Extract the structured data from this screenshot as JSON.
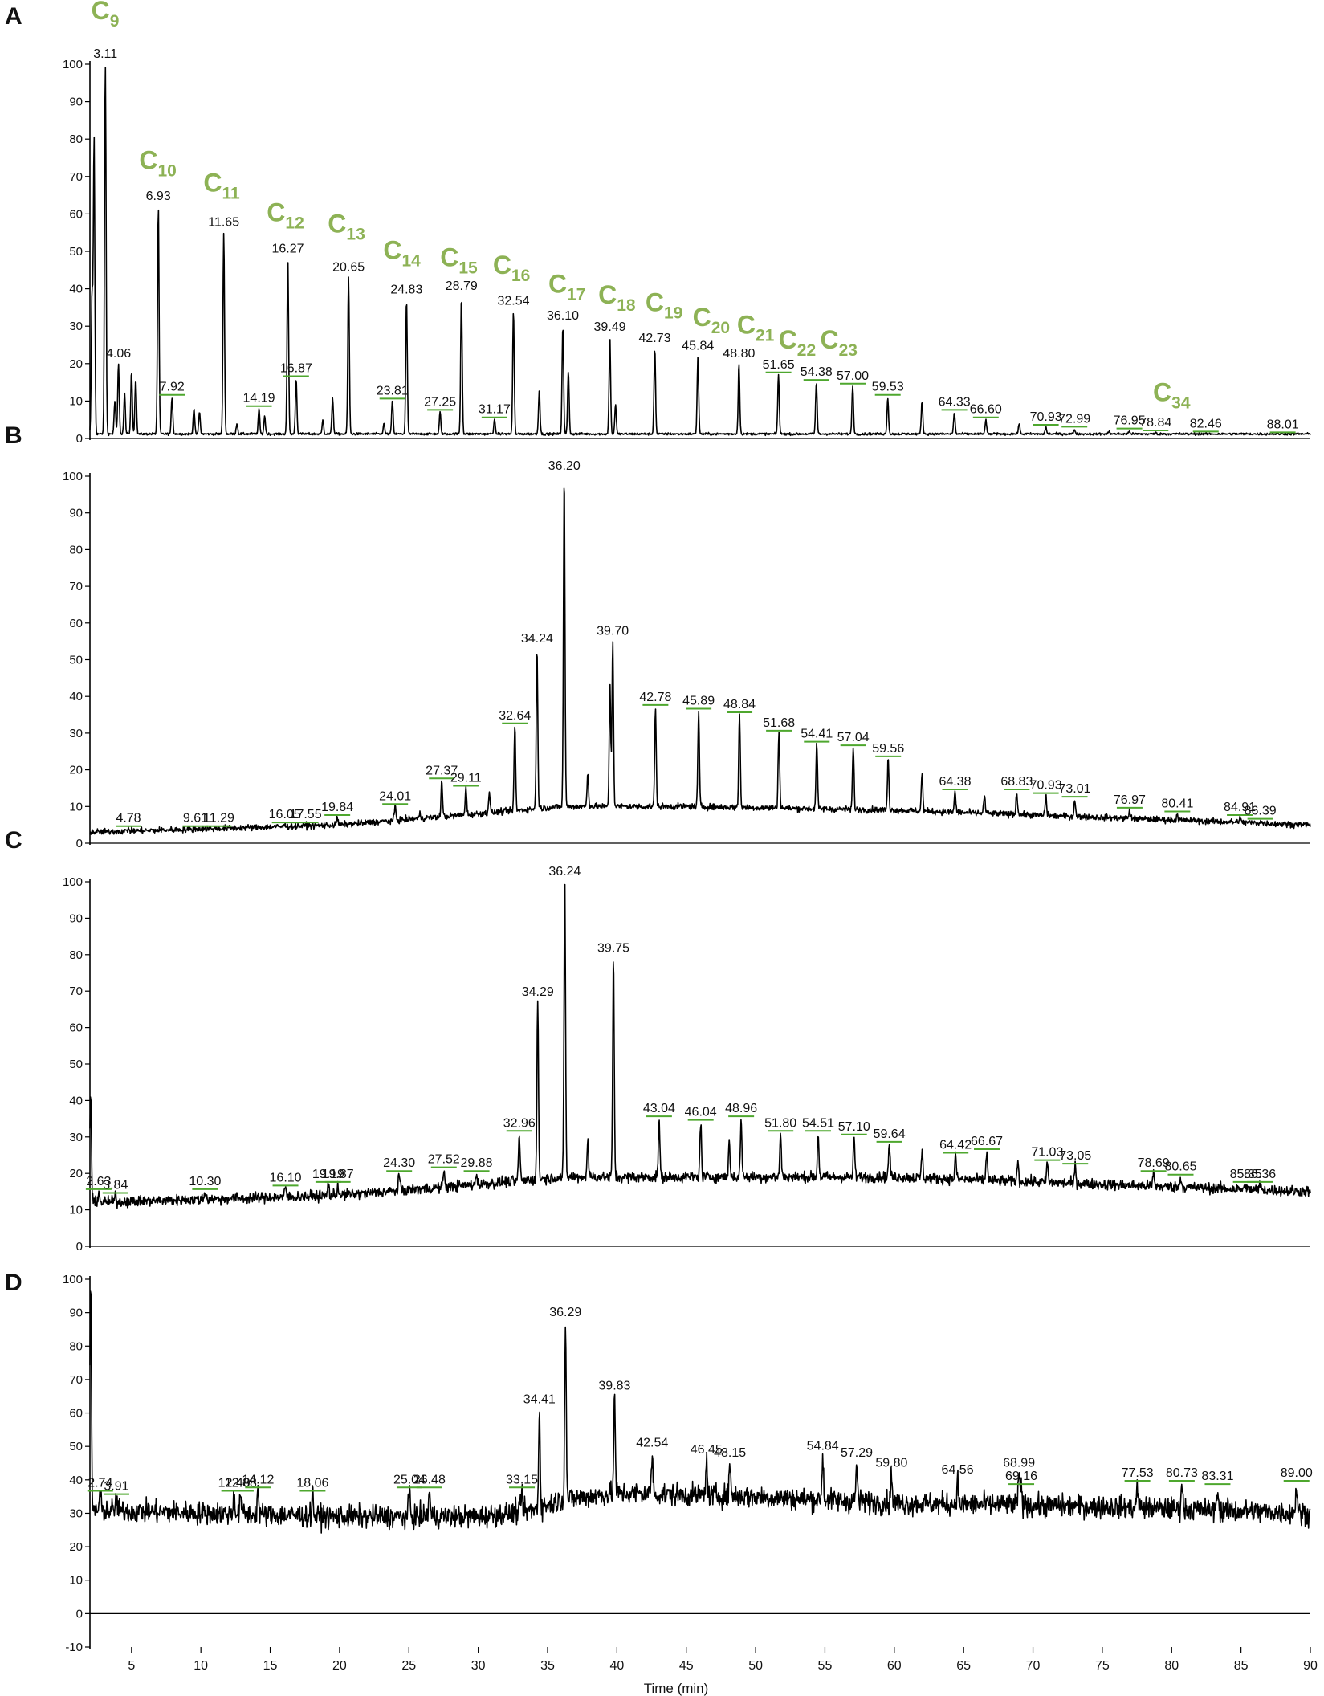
{
  "chart_data": {
    "type": "line",
    "xlabel": "Time (min)",
    "xlim": [
      2,
      90
    ],
    "x_ticks": [
      "5",
      "10",
      "15",
      "20",
      "25",
      "30",
      "35",
      "40",
      "45",
      "50",
      "55",
      "60",
      "65",
      "70",
      "75",
      "80",
      "85",
      "90"
    ],
    "colors": {
      "trace": "#000000",
      "carbon_label": "#8db255",
      "marker": "#4ea72e"
    },
    "panels": [
      {
        "label": "A",
        "ylim": [
          0,
          100
        ],
        "y_ticks": [
          "0",
          "10",
          "20",
          "30",
          "40",
          "50",
          "60",
          "70",
          "80",
          "90",
          "100"
        ],
        "baseline": 1.2,
        "noise": 0.3,
        "peaks": [
          {
            "x": 2.3,
            "y": 80
          },
          {
            "x": 2.15,
            "y": 38
          },
          {
            "x": 3.11,
            "y": 100,
            "label": "3.11"
          },
          {
            "x": 3.8,
            "y": 10
          },
          {
            "x": 4.06,
            "y": 20,
            "label": "4.06"
          },
          {
            "x": 4.5,
            "y": 12
          },
          {
            "x": 5.0,
            "y": 18
          },
          {
            "x": 5.3,
            "y": 16
          },
          {
            "x": 6.93,
            "y": 62,
            "label": "6.93"
          },
          {
            "x": 7.92,
            "y": 11,
            "label": "7.92"
          },
          {
            "x": 9.5,
            "y": 8
          },
          {
            "x": 9.9,
            "y": 7
          },
          {
            "x": 11.65,
            "y": 55,
            "label": "11.65"
          },
          {
            "x": 12.6,
            "y": 4
          },
          {
            "x": 14.19,
            "y": 8,
            "label": "14.19"
          },
          {
            "x": 14.6,
            "y": 6
          },
          {
            "x": 16.27,
            "y": 48,
            "label": "16.27"
          },
          {
            "x": 16.87,
            "y": 16,
            "label": "16.87"
          },
          {
            "x": 18.8,
            "y": 5
          },
          {
            "x": 19.5,
            "y": 11
          },
          {
            "x": 20.65,
            "y": 43,
            "label": "20.65"
          },
          {
            "x": 23.2,
            "y": 4
          },
          {
            "x": 23.81,
            "y": 10,
            "label": "23.81"
          },
          {
            "x": 24.83,
            "y": 37,
            "label": "24.83"
          },
          {
            "x": 27.25,
            "y": 7,
            "label": "27.25"
          },
          {
            "x": 28.79,
            "y": 38,
            "label": "28.79"
          },
          {
            "x": 31.17,
            "y": 5,
            "label": "31.17"
          },
          {
            "x": 32.54,
            "y": 34,
            "label": "32.54"
          },
          {
            "x": 34.4,
            "y": 13
          },
          {
            "x": 36.1,
            "y": 30,
            "label": "36.10"
          },
          {
            "x": 36.5,
            "y": 18
          },
          {
            "x": 39.49,
            "y": 27,
            "label": "39.49"
          },
          {
            "x": 39.9,
            "y": 9
          },
          {
            "x": 42.73,
            "y": 24,
            "label": "42.73"
          },
          {
            "x": 45.84,
            "y": 22,
            "label": "45.84"
          },
          {
            "x": 48.8,
            "y": 20,
            "label": "48.80"
          },
          {
            "x": 51.65,
            "y": 17,
            "label": "51.65"
          },
          {
            "x": 54.38,
            "y": 15,
            "label": "54.38"
          },
          {
            "x": 57.0,
            "y": 14,
            "label": "57.00"
          },
          {
            "x": 59.53,
            "y": 11,
            "label": "59.53"
          },
          {
            "x": 62.0,
            "y": 10
          },
          {
            "x": 64.33,
            "y": 7,
            "label": "64.33"
          },
          {
            "x": 66.6,
            "y": 5,
            "label": "66.60"
          },
          {
            "x": 69.0,
            "y": 4
          },
          {
            "x": 70.93,
            "y": 3,
            "label": "70.93"
          },
          {
            "x": 72.99,
            "y": 2.5,
            "label": "72.99"
          },
          {
            "x": 75.5,
            "y": 2
          },
          {
            "x": 76.95,
            "y": 2,
            "label": "76.95"
          },
          {
            "x": 78.84,
            "y": 1.5,
            "label": "78.84"
          },
          {
            "x": 82.46,
            "y": 1.2,
            "label": "82.46"
          },
          {
            "x": 88.01,
            "y": 1,
            "label": "88.01"
          }
        ],
        "carbon_labels": [
          {
            "base": "C",
            "sub": "9",
            "x": 3.1,
            "y": 112
          },
          {
            "base": "C",
            "sub": "10",
            "x": 6.9,
            "y": 72
          },
          {
            "base": "C",
            "sub": "11",
            "x": 11.5,
            "y": 66
          },
          {
            "base": "C",
            "sub": "12",
            "x": 16.1,
            "y": 58
          },
          {
            "base": "C",
            "sub": "13",
            "x": 20.5,
            "y": 55
          },
          {
            "base": "C",
            "sub": "14",
            "x": 24.5,
            "y": 48
          },
          {
            "base": "C",
            "sub": "15",
            "x": 28.6,
            "y": 46
          },
          {
            "base": "C",
            "sub": "16",
            "x": 32.4,
            "y": 44
          },
          {
            "base": "C",
            "sub": "17",
            "x": 36.4,
            "y": 39
          },
          {
            "base": "C",
            "sub": "18",
            "x": 40.0,
            "y": 36
          },
          {
            "base": "C",
            "sub": "19",
            "x": 43.4,
            "y": 34
          },
          {
            "base": "C",
            "sub": "20",
            "x": 46.8,
            "y": 30
          },
          {
            "base": "C",
            "sub": "21",
            "x": 50.0,
            "y": 28
          },
          {
            "base": "C",
            "sub": "22",
            "x": 53.0,
            "y": 24
          },
          {
            "base": "C",
            "sub": "23",
            "x": 56.0,
            "y": 24
          },
          {
            "base": "C",
            "sub": "34",
            "x": 80.0,
            "y": 10
          }
        ]
      },
      {
        "label": "B",
        "ylim": [
          0,
          100
        ],
        "y_ticks": [
          "0",
          "10",
          "20",
          "30",
          "40",
          "50",
          "60",
          "70",
          "80",
          "90",
          "100"
        ],
        "baseline_points": [
          [
            2,
            3
          ],
          [
            20,
            5
          ],
          [
            30,
            8
          ],
          [
            36,
            10
          ],
          [
            45,
            10
          ],
          [
            60,
            9
          ],
          [
            75,
            7
          ],
          [
            90,
            5
          ]
        ],
        "noise": 0.8,
        "peaks": [
          {
            "x": 4.78,
            "y": 4,
            "label": "4.78"
          },
          {
            "x": 9.61,
            "y": 4,
            "label": "9.61"
          },
          {
            "x": 11.29,
            "y": 4,
            "label": "11.29"
          },
          {
            "x": 16.05,
            "y": 5,
            "label": "16.05"
          },
          {
            "x": 17.55,
            "y": 5,
            "label": "17.55"
          },
          {
            "x": 19.84,
            "y": 7,
            "label": "19.84"
          },
          {
            "x": 24.01,
            "y": 10,
            "label": "24.01"
          },
          {
            "x": 25.8,
            "y": 8
          },
          {
            "x": 27.37,
            "y": 17,
            "label": "27.37"
          },
          {
            "x": 29.11,
            "y": 15,
            "label": "29.11"
          },
          {
            "x": 30.8,
            "y": 14
          },
          {
            "x": 32.64,
            "y": 32,
            "label": "32.64"
          },
          {
            "x": 34.24,
            "y": 53,
            "label": "34.24"
          },
          {
            "x": 36.2,
            "y": 100,
            "label": "36.20"
          },
          {
            "x": 37.9,
            "y": 19
          },
          {
            "x": 39.5,
            "y": 43
          },
          {
            "x": 39.7,
            "y": 55,
            "label": "39.70"
          },
          {
            "x": 42.78,
            "y": 37,
            "label": "42.78"
          },
          {
            "x": 45.89,
            "y": 36,
            "label": "45.89"
          },
          {
            "x": 48.84,
            "y": 35,
            "label": "48.84"
          },
          {
            "x": 51.68,
            "y": 30,
            "label": "51.68"
          },
          {
            "x": 54.41,
            "y": 27,
            "label": "54.41"
          },
          {
            "x": 57.04,
            "y": 26,
            "label": "57.04"
          },
          {
            "x": 59.56,
            "y": 23,
            "label": "59.56"
          },
          {
            "x": 62.0,
            "y": 19
          },
          {
            "x": 64.38,
            "y": 14,
            "label": "64.38"
          },
          {
            "x": 66.5,
            "y": 13
          },
          {
            "x": 68.83,
            "y": 14,
            "label": "68.83"
          },
          {
            "x": 70.93,
            "y": 13,
            "label": "70.93"
          },
          {
            "x": 73.01,
            "y": 12,
            "label": "73.01"
          },
          {
            "x": 76.97,
            "y": 9,
            "label": "76.97"
          },
          {
            "x": 80.41,
            "y": 8,
            "label": "80.41"
          },
          {
            "x": 84.91,
            "y": 7,
            "label": "84.91"
          },
          {
            "x": 86.39,
            "y": 6,
            "label": "86.39"
          }
        ]
      },
      {
        "label": "C",
        "ylim": [
          0,
          100
        ],
        "y_ticks": [
          "0",
          "10",
          "20",
          "30",
          "40",
          "50",
          "60",
          "70",
          "80",
          "90",
          "100"
        ],
        "baseline_points": [
          [
            2,
            12
          ],
          [
            20,
            14
          ],
          [
            30,
            17
          ],
          [
            36,
            19
          ],
          [
            45,
            19
          ],
          [
            60,
            19
          ],
          [
            75,
            17
          ],
          [
            90,
            15
          ]
        ],
        "noise": 1.4,
        "peaks": [
          {
            "x": 2.05,
            "y": 42
          },
          {
            "x": 2.63,
            "y": 15,
            "label": "2.63"
          },
          {
            "x": 3.84,
            "y": 14,
            "label": "3.84"
          },
          {
            "x": 10.3,
            "y": 15,
            "label": "10.30"
          },
          {
            "x": 16.1,
            "y": 16,
            "label": "16.10"
          },
          {
            "x": 19.19,
            "y": 17,
            "label": "19.19"
          },
          {
            "x": 19.87,
            "y": 17,
            "label": "19.87"
          },
          {
            "x": 24.3,
            "y": 20,
            "label": "24.30"
          },
          {
            "x": 27.52,
            "y": 21,
            "label": "27.52"
          },
          {
            "x": 29.88,
            "y": 20,
            "label": "29.88"
          },
          {
            "x": 32.96,
            "y": 31,
            "label": "32.96"
          },
          {
            "x": 34.29,
            "y": 67,
            "label": "34.29"
          },
          {
            "x": 36.24,
            "y": 100,
            "label": "36.24"
          },
          {
            "x": 37.9,
            "y": 29
          },
          {
            "x": 39.75,
            "y": 79,
            "label": "39.75"
          },
          {
            "x": 43.04,
            "y": 35,
            "label": "43.04"
          },
          {
            "x": 46.04,
            "y": 34,
            "label": "46.04"
          },
          {
            "x": 48.1,
            "y": 29
          },
          {
            "x": 48.96,
            "y": 35,
            "label": "48.96"
          },
          {
            "x": 51.8,
            "y": 31,
            "label": "51.80"
          },
          {
            "x": 54.51,
            "y": 31,
            "label": "54.51"
          },
          {
            "x": 57.1,
            "y": 30,
            "label": "57.10"
          },
          {
            "x": 59.64,
            "y": 28,
            "label": "59.64"
          },
          {
            "x": 62.0,
            "y": 26
          },
          {
            "x": 64.42,
            "y": 25,
            "label": "64.42"
          },
          {
            "x": 66.67,
            "y": 26,
            "label": "66.67"
          },
          {
            "x": 68.9,
            "y": 23
          },
          {
            "x": 71.03,
            "y": 23,
            "label": "71.03"
          },
          {
            "x": 73.05,
            "y": 22,
            "label": "73.05"
          },
          {
            "x": 78.69,
            "y": 20,
            "label": "78.69"
          },
          {
            "x": 80.65,
            "y": 19,
            "label": "80.65"
          },
          {
            "x": 85.35,
            "y": 17,
            "label": "85.35"
          },
          {
            "x": 86.36,
            "y": 17,
            "label": "86.36"
          }
        ]
      },
      {
        "label": "D",
        "ylim": [
          -10,
          100
        ],
        "y_ticks": [
          "-10",
          "0",
          "10",
          "20",
          "30",
          "40",
          "50",
          "60",
          "70",
          "80",
          "90",
          "100"
        ],
        "baseline_points": [
          [
            2,
            31
          ],
          [
            20,
            29
          ],
          [
            30,
            29
          ],
          [
            34,
            31
          ],
          [
            36,
            34
          ],
          [
            40,
            36
          ],
          [
            50,
            35
          ],
          [
            60,
            33
          ],
          [
            75,
            32
          ],
          [
            90,
            30
          ]
        ],
        "noise": 3.2,
        "peaks": [
          {
            "x": 2.05,
            "y": 97
          },
          {
            "x": 2.74,
            "y": 36,
            "label": "2.74"
          },
          {
            "x": 3.91,
            "y": 35,
            "label": "3.91"
          },
          {
            "x": 12.4,
            "y": 36,
            "label": "12.40"
          },
          {
            "x": 12.88,
            "y": 36,
            "label": "12.88"
          },
          {
            "x": 14.12,
            "y": 37,
            "label": "14.12"
          },
          {
            "x": 18.06,
            "y": 36,
            "label": "18.06"
          },
          {
            "x": 25.04,
            "y": 37,
            "label": "25.04"
          },
          {
            "x": 26.48,
            "y": 37,
            "label": "26.48"
          },
          {
            "x": 33.15,
            "y": 37,
            "label": "33.15"
          },
          {
            "x": 34.41,
            "y": 61,
            "label": "34.41"
          },
          {
            "x": 36.29,
            "y": 87,
            "label": "36.29"
          },
          {
            "x": 39.83,
            "y": 65,
            "label": "39.83"
          },
          {
            "x": 42.54,
            "y": 48,
            "label": "42.54"
          },
          {
            "x": 46.45,
            "y": 46,
            "label": "46.45"
          },
          {
            "x": 48.15,
            "y": 45,
            "label": "48.15"
          },
          {
            "x": 54.84,
            "y": 47,
            "label": "54.84"
          },
          {
            "x": 57.29,
            "y": 45,
            "label": "57.29"
          },
          {
            "x": 59.8,
            "y": 42,
            "label": "59.80"
          },
          {
            "x": 64.56,
            "y": 40,
            "label": "64.56"
          },
          {
            "x": 68.99,
            "y": 42,
            "label": "68.99"
          },
          {
            "x": 69.16,
            "y": 38,
            "label": "69.16"
          },
          {
            "x": 77.53,
            "y": 39,
            "label": "77.53"
          },
          {
            "x": 80.73,
            "y": 39,
            "label": "80.73"
          },
          {
            "x": 83.31,
            "y": 38,
            "label": "83.31"
          },
          {
            "x": 89.0,
            "y": 39,
            "label": "89.00"
          }
        ]
      }
    ]
  }
}
